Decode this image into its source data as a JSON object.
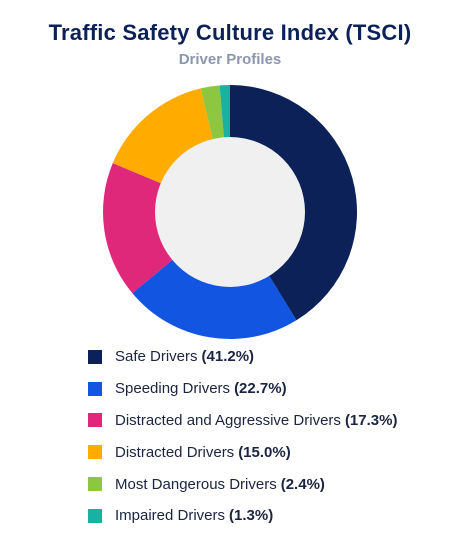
{
  "chart_data": {
    "type": "pie",
    "donut": true,
    "title": "Traffic Safety Culture Index (TSCI)",
    "subtitle": "Driver Profiles",
    "legend_position": "bottom",
    "slices": [
      {
        "label": "Safe Drivers",
        "value": 41.2,
        "value_label": "(41.2%)",
        "color": "#0b2158"
      },
      {
        "label": "Speeding Drivers",
        "value": 22.7,
        "value_label": "(22.7%)",
        "color": "#1155e0"
      },
      {
        "label": "Distracted and Aggressive Drivers",
        "value": 17.3,
        "value_label": "(17.3%)",
        "color": "#e0287a"
      },
      {
        "label": "Distracted Drivers",
        "value": 15.0,
        "value_label": "(15.0%)",
        "color": "#ffab00"
      },
      {
        "label": "Most Dangerous Drivers",
        "value": 2.4,
        "value_label": "(2.4%)",
        "color": "#8dc63f"
      },
      {
        "label": "Impaired Drivers",
        "value": 1.3,
        "value_label": "(1.3%)",
        "color": "#17b2a1"
      }
    ],
    "hole_color": "#f0f0f0"
  }
}
